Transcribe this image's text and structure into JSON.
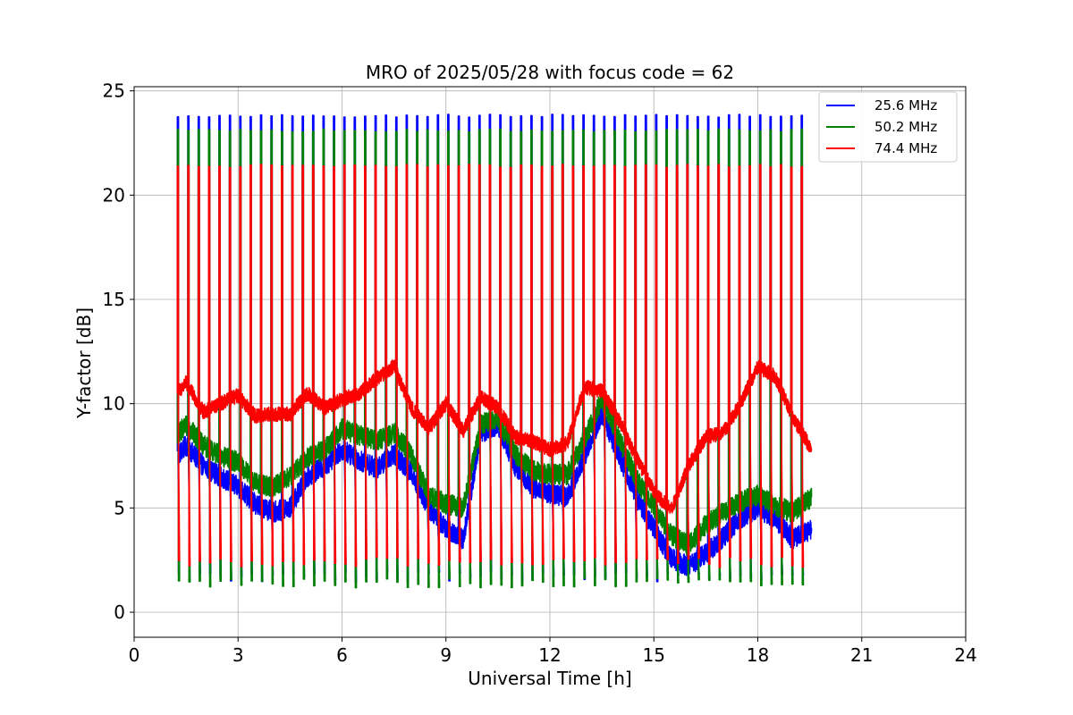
{
  "chart_data": {
    "type": "line",
    "title": "MRO of 2025/05/28 with focus code = 62",
    "xlabel": "Universal Time [h]",
    "ylabel": "Y-factor [dB]",
    "xlim": [
      0,
      24
    ],
    "ylim": [
      -1.2,
      25.2
    ],
    "xticks": [
      0,
      3,
      6,
      9,
      12,
      15,
      18,
      21,
      24
    ],
    "yticks": [
      0,
      5,
      10,
      15,
      20,
      25
    ],
    "grid": true,
    "legend_position": "top-right",
    "x_start": 1.25,
    "x_end_switching": 19.35,
    "x_end": 19.55,
    "cal_period_h": 0.3,
    "series": [
      {
        "name": "25.6 MHz",
        "color": "#0000ff",
        "cal_high": 23.8,
        "cal_low": 1.7,
        "baseline": {
          "x": [
            1.25,
            1.5,
            2.0,
            2.5,
            3.0,
            3.5,
            4.0,
            4.5,
            5.0,
            5.5,
            6.0,
            6.5,
            7.0,
            7.5,
            8.0,
            8.5,
            9.0,
            9.5,
            10.0,
            10.5,
            11.0,
            11.5,
            12.0,
            12.5,
            13.0,
            13.5,
            14.0,
            14.5,
            15.0,
            15.5,
            16.0,
            16.5,
            17.0,
            17.5,
            18.0,
            18.5,
            19.0,
            19.55
          ],
          "y": [
            7.5,
            8.0,
            7.0,
            6.5,
            6.0,
            5.2,
            4.8,
            5.0,
            6.5,
            7.0,
            7.8,
            7.3,
            6.9,
            7.6,
            6.7,
            5.0,
            4.0,
            3.5,
            8.6,
            9.0,
            7.0,
            6.0,
            5.7,
            5.5,
            7.5,
            9.5,
            7.5,
            5.5,
            4.0,
            2.6,
            2.2,
            2.8,
            3.6,
            4.5,
            5.0,
            4.5,
            3.5,
            4.0
          ]
        }
      },
      {
        "name": "50.2 MHz",
        "color": "#008000",
        "cal_high": 23.1,
        "cal_low": 1.4,
        "baseline": {
          "x": [
            1.25,
            1.5,
            2.0,
            2.5,
            3.0,
            3.5,
            4.0,
            4.5,
            5.0,
            5.5,
            6.0,
            6.5,
            7.0,
            7.5,
            8.0,
            8.5,
            9.0,
            9.5,
            10.0,
            10.5,
            11.0,
            11.5,
            12.0,
            12.5,
            13.0,
            13.5,
            14.0,
            14.5,
            15.0,
            15.5,
            16.0,
            16.5,
            17.0,
            17.5,
            18.0,
            18.5,
            19.0,
            19.55
          ],
          "y": [
            8.5,
            9.0,
            8.0,
            7.5,
            7.2,
            6.2,
            6.0,
            6.5,
            7.4,
            7.8,
            8.8,
            8.5,
            8.2,
            8.6,
            7.6,
            5.6,
            5.2,
            5.0,
            9.0,
            9.3,
            7.6,
            6.8,
            6.6,
            6.6,
            8.3,
            10.2,
            8.3,
            6.4,
            5.0,
            3.7,
            3.2,
            4.2,
            4.8,
            5.3,
            5.6,
            5.1,
            4.8,
            5.5
          ]
        }
      },
      {
        "name": "74.4 MHz",
        "color": "#ff0000",
        "cal_high": 21.4,
        "cal_low": 2.4,
        "baseline": {
          "x": [
            1.25,
            1.5,
            2.0,
            2.5,
            3.0,
            3.5,
            4.0,
            4.5,
            5.0,
            5.5,
            6.0,
            6.5,
            7.0,
            7.5,
            8.0,
            8.5,
            9.0,
            9.5,
            10.0,
            10.5,
            11.0,
            11.5,
            12.0,
            12.5,
            13.0,
            13.5,
            14.0,
            14.5,
            15.0,
            15.5,
            16.0,
            16.5,
            17.0,
            17.5,
            18.0,
            18.5,
            19.0,
            19.55
          ],
          "y": [
            10.5,
            11.0,
            9.6,
            10.0,
            10.4,
            9.4,
            9.5,
            9.5,
            10.5,
            9.8,
            10.2,
            10.5,
            11.2,
            11.8,
            9.8,
            8.8,
            10.0,
            8.7,
            10.3,
            9.8,
            8.4,
            8.2,
            7.8,
            8.1,
            10.8,
            10.6,
            9.2,
            7.4,
            5.8,
            4.9,
            7.0,
            8.4,
            8.6,
            10.0,
            11.8,
            11.3,
            9.4,
            7.8
          ]
        }
      }
    ]
  }
}
